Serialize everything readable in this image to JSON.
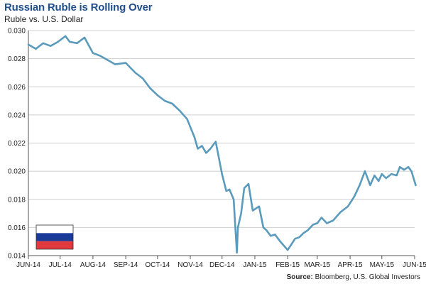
{
  "chart_data": {
    "type": "line",
    "title": "Russian Ruble is Rolling Over",
    "subtitle": "Ruble vs. U.S. Dollar",
    "xlabel": "",
    "ylabel": "",
    "x_ticks": [
      "JUN-14",
      "JUL-14",
      "AUG-14",
      "SEP-14",
      "OCT-14",
      "NOV-14",
      "DEC-14",
      "JAN-15",
      "FEB-15",
      "MAR-15",
      "APR-15",
      "MAY-15",
      "JUN-15"
    ],
    "y_ticks": [
      "0.014",
      "0.016",
      "0.018",
      "0.020",
      "0.022",
      "0.024",
      "0.026",
      "0.028",
      "0.030"
    ],
    "ylim": [
      0.014,
      0.03
    ],
    "grid": "horizontal",
    "line_color": "#5a9bbd",
    "series": [
      {
        "x": [
          "2014-06-01",
          "2014-06-08",
          "2014-06-15",
          "2014-06-22",
          "2014-06-29",
          "2014-07-06",
          "2014-07-10",
          "2014-07-17",
          "2014-07-24",
          "2014-08-01",
          "2014-08-08",
          "2014-08-15",
          "2014-08-22",
          "2014-09-01",
          "2014-09-10",
          "2014-09-17",
          "2014-09-24",
          "2014-10-01",
          "2014-10-08",
          "2014-10-15",
          "2014-10-22",
          "2014-10-29",
          "2014-11-05",
          "2014-11-08",
          "2014-11-12",
          "2014-11-16",
          "2014-11-20",
          "2014-11-25",
          "2014-12-01",
          "2014-12-05",
          "2014-12-08",
          "2014-12-12",
          "2014-12-15",
          "2014-12-16",
          "2014-12-19",
          "2014-12-22",
          "2014-12-26",
          "2014-12-30",
          "2015-01-05",
          "2015-01-09",
          "2015-01-12",
          "2015-01-16",
          "2015-01-20",
          "2015-01-25",
          "2015-02-01",
          "2015-02-08",
          "2015-02-12",
          "2015-02-16",
          "2015-02-20",
          "2015-02-25",
          "2015-03-01",
          "2015-03-05",
          "2015-03-10",
          "2015-03-16",
          "2015-03-23",
          "2015-03-30",
          "2015-04-05",
          "2015-04-10",
          "2015-04-15",
          "2015-04-20",
          "2015-04-24",
          "2015-04-28",
          "2015-05-01",
          "2015-05-05",
          "2015-05-10",
          "2015-05-15",
          "2015-05-18",
          "2015-05-22",
          "2015-05-26",
          "2015-05-29",
          "2015-06-02"
        ],
        "y": [
          0.029,
          0.0287,
          0.0291,
          0.0289,
          0.0292,
          0.0296,
          0.0292,
          0.0291,
          0.0295,
          0.0284,
          0.0282,
          0.0279,
          0.0276,
          0.0277,
          0.027,
          0.0266,
          0.0259,
          0.0254,
          0.025,
          0.0248,
          0.0243,
          0.0237,
          0.0224,
          0.0216,
          0.0218,
          0.0213,
          0.0216,
          0.0221,
          0.0198,
          0.0186,
          0.0187,
          0.018,
          0.0142,
          0.016,
          0.017,
          0.0188,
          0.0191,
          0.0172,
          0.0175,
          0.016,
          0.0158,
          0.0154,
          0.0155,
          0.015,
          0.0144,
          0.0152,
          0.0153,
          0.0156,
          0.0158,
          0.0162,
          0.0163,
          0.0167,
          0.0163,
          0.0165,
          0.0171,
          0.0175,
          0.0182,
          0.019,
          0.02,
          0.019,
          0.0197,
          0.0193,
          0.0198,
          0.0195,
          0.0198,
          0.0197,
          0.0203,
          0.0201,
          0.0203,
          0.02,
          0.019
        ]
      }
    ],
    "annotations": [
      "Source: Bloomberg, U.S. Global Investors"
    ],
    "legend": "none"
  },
  "source": {
    "prefix": "Source:",
    "text": " Bloomberg, U.S. Global Investors"
  },
  "flag": {
    "name": "Russia",
    "stripes": [
      "#ffffff",
      "#1a3a9a",
      "#e03a3e"
    ]
  }
}
